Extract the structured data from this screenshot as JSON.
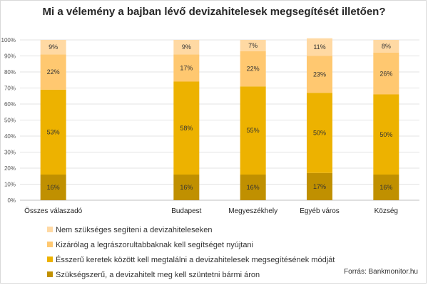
{
  "chart_data": {
    "type": "bar",
    "stacked": true,
    "title": "Mi a vélemény a bajban lévő devizahitelesek megsegítését illetően?",
    "categories": [
      "Összes válaszadó",
      "",
      "Budapest",
      "Megyeszékhely",
      "Egyéb város",
      "Község"
    ],
    "ylim": [
      0,
      100
    ],
    "yticks": [
      "0%",
      "10%",
      "20%",
      "30%",
      "40%",
      "50%",
      "60%",
      "70%",
      "80%",
      "90%",
      "100%"
    ],
    "grid": true,
    "legend_position": "bottom",
    "series": [
      {
        "name": "Szükségszerű, a devizahitelt meg kell szüntetni bármi áron",
        "color": "#C09000",
        "values": [
          16,
          null,
          16,
          16,
          17,
          16
        ],
        "labels": [
          "16%",
          "",
          "16%",
          "16%",
          "17%",
          "16%"
        ]
      },
      {
        "name": "Ésszerű keretek között kell megtalálni a devizahitelesek megsegítésének módját",
        "color": "#EDB200",
        "values": [
          53,
          null,
          58,
          55,
          50,
          50
        ],
        "labels": [
          "53%",
          "",
          "58%",
          "55%",
          "50%",
          "50%"
        ]
      },
      {
        "name": "Kizárólag a legrászorultabbaknak kell segítséget nyújtani",
        "color": "#FFC870",
        "values": [
          22,
          null,
          17,
          22,
          23,
          26
        ],
        "labels": [
          "22%",
          "",
          "17%",
          "22%",
          "23%",
          "26%"
        ]
      },
      {
        "name": "Nem szükséges segíteni a devizahiteleseken",
        "color": "#FFD9A3",
        "values": [
          9,
          null,
          9,
          7,
          11,
          8
        ],
        "labels": [
          "9%",
          "",
          "9%",
          "7%",
          "11%",
          "8%"
        ]
      }
    ],
    "legend_order": [
      3,
      2,
      1,
      0
    ],
    "source": "Forrás: Bankmonitor.hu"
  }
}
